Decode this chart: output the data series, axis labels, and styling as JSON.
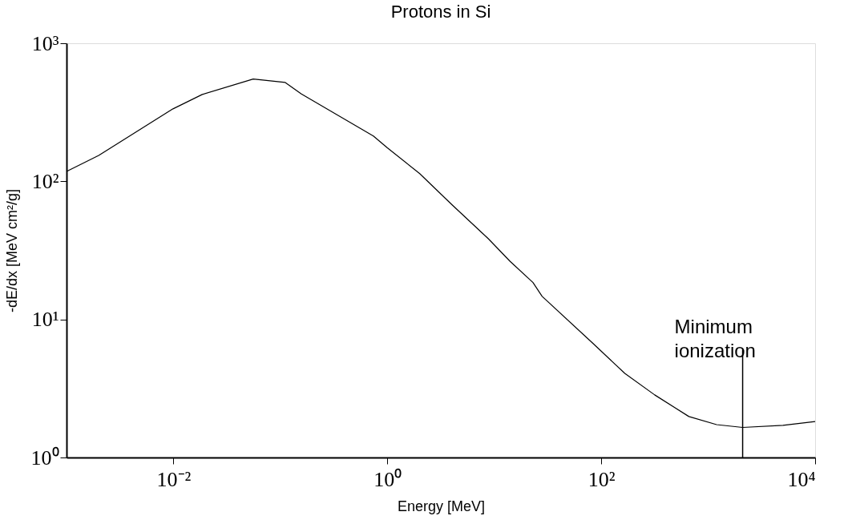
{
  "chart_data": {
    "type": "line",
    "title": "Protons in Si",
    "xlabel": "Energy [MeV]",
    "ylabel": "-dE/dx [MeV cm²/g]",
    "x": [
      0.001,
      0.002,
      0.0099,
      0.0186,
      0.0557,
      0.111,
      0.157,
      0.74,
      1.0,
      2.0,
      4.0,
      8.8,
      14,
      23,
      28,
      82,
      166,
      316,
      660,
      1200,
      2100,
      5000,
      10000
    ],
    "series": [
      {
        "color": "#000000",
        "values": [
          118,
          154,
          335,
          426,
          551,
          520,
          429,
          213,
          175,
          114,
          68,
          38.4,
          26.4,
          18.5,
          14.7,
          6.8,
          4.07,
          2.84,
          1.98,
          1.73,
          1.65,
          1.71,
          1.82
        ]
      }
    ],
    "xlim": [
      0.001,
      10000
    ],
    "ylim": [
      1,
      1000
    ],
    "xticks": [
      {
        "value": 0.01,
        "label": "10⁻²"
      },
      {
        "value": 1,
        "label": "10⁰"
      },
      {
        "value": 100,
        "label": "10²"
      },
      {
        "value": 10000,
        "label": "10⁴"
      }
    ],
    "yticks": [
      {
        "value": 1,
        "label": "10⁰"
      },
      {
        "value": 10,
        "label": "10¹"
      },
      {
        "value": 100,
        "label": "10²"
      },
      {
        "value": 1000,
        "label": "10³"
      }
    ],
    "log": "xy",
    "grid": false,
    "ref_lines": [
      {
        "axis": "x",
        "value": 2100,
        "label": "Minimum ionization"
      }
    ]
  }
}
